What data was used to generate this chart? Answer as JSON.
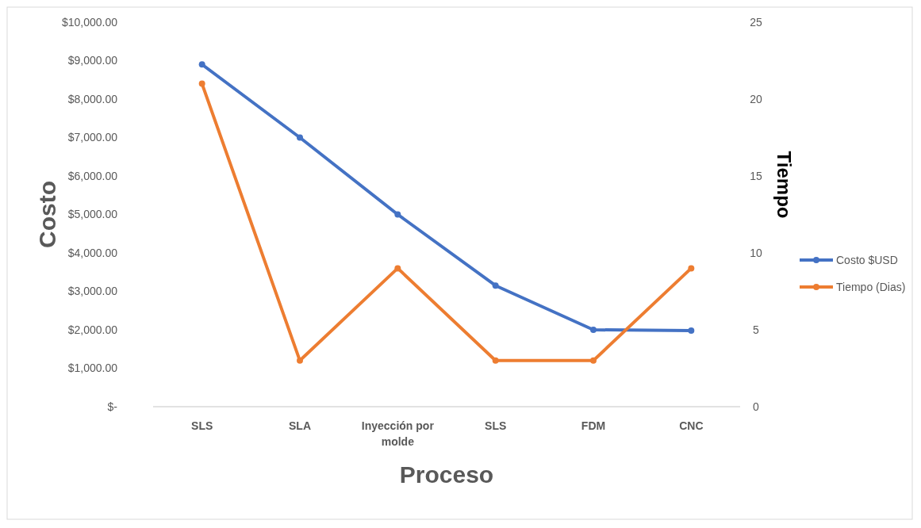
{
  "chart_data": {
    "type": "line",
    "xlabel": "Proceso",
    "ylabel": "Costo",
    "y2label": "Tiempo",
    "categories": [
      "SLS",
      "SLA",
      "Inyección por molde",
      "SLS",
      "FDM",
      "CNC"
    ],
    "series": [
      {
        "name": "Costo $USD",
        "color": "#4472c4",
        "values": [
          8900,
          7000,
          5000,
          3150,
          2000,
          1980
        ]
      },
      {
        "name": "Tiempo (Dias)",
        "color": "#ed7d31",
        "axis": "y2",
        "values": [
          21,
          3,
          9,
          3,
          3,
          9
        ]
      }
    ],
    "ylim": [
      0,
      10000
    ],
    "yticks": [
      {
        "value": 0,
        "label": "$-"
      },
      {
        "value": 1000,
        "label": "$1,000.00"
      },
      {
        "value": 2000,
        "label": "$2,000.00"
      },
      {
        "value": 3000,
        "label": "$3,000.00"
      },
      {
        "value": 4000,
        "label": "$4,000.00"
      },
      {
        "value": 5000,
        "label": "$5,000.00"
      },
      {
        "value": 6000,
        "label": "$6,000.00"
      },
      {
        "value": 7000,
        "label": "$7,000.00"
      },
      {
        "value": 8000,
        "label": "$8,000.00"
      },
      {
        "value": 9000,
        "label": "$9,000.00"
      },
      {
        "value": 10000,
        "label": "$10,000.00"
      }
    ],
    "y2lim": [
      0,
      25
    ],
    "y2ticks": [
      0,
      5,
      10,
      15,
      20,
      25
    ],
    "grid": false,
    "legend": "right",
    "marker": "circle",
    "line_style": "solid"
  }
}
